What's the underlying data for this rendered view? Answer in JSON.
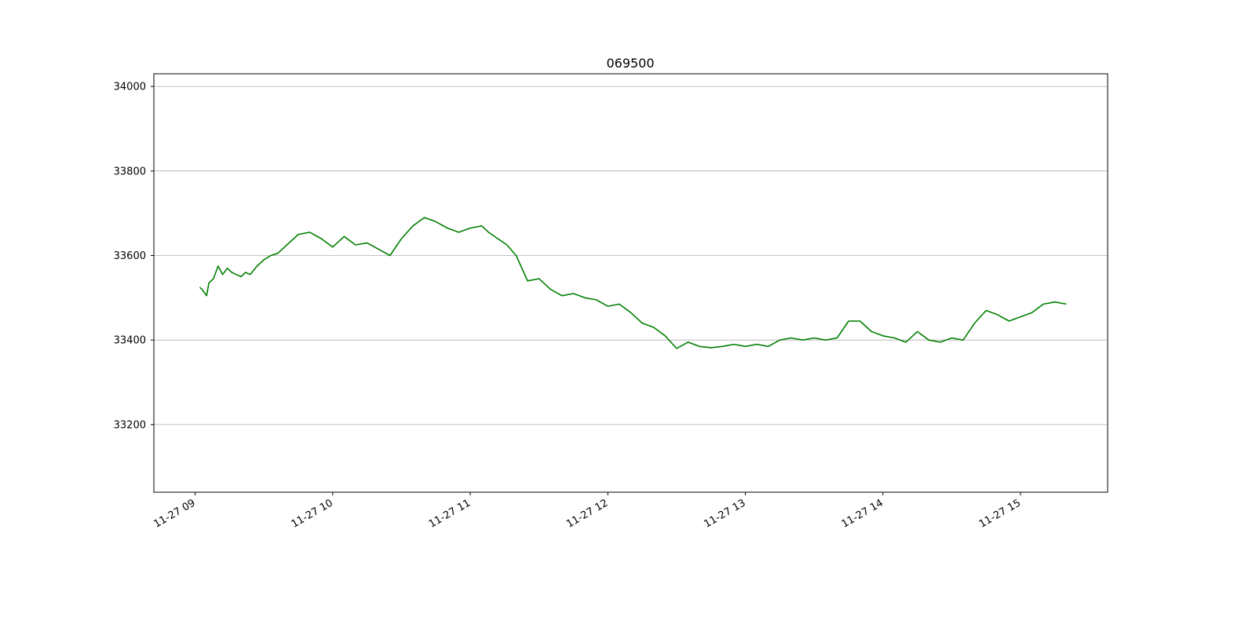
{
  "chart_data": {
    "type": "line",
    "title": "069500",
    "xlabel": "",
    "ylabel": "",
    "x_range": [
      "2023-11-27 08:42",
      "2023-11-27 15:38"
    ],
    "ylim": [
      33040,
      34030
    ],
    "x_ticks": [
      "11-27 09",
      "11-27 10",
      "11-27 11",
      "11-27 12",
      "11-27 13",
      "11-27 14",
      "11-27 15"
    ],
    "y_ticks": [
      33200,
      33400,
      33600,
      33800,
      34000
    ],
    "grid": "y-axis only",
    "colors": {
      "line": "#007f00",
      "grid": "#b0b0b0",
      "axes": "#000000"
    },
    "series": [
      {
        "x": [
          "2023-11-27 09:02",
          "2023-11-27 09:03",
          "2023-11-27 09:05",
          "2023-11-27 09:06",
          "2023-11-27 09:08",
          "2023-11-27 09:10",
          "2023-11-27 09:12",
          "2023-11-27 09:14",
          "2023-11-27 09:16",
          "2023-11-27 09:18",
          "2023-11-27 09:20",
          "2023-11-27 09:22",
          "2023-11-27 09:24",
          "2023-11-27 09:27",
          "2023-11-27 09:30",
          "2023-11-27 09:33",
          "2023-11-27 09:36",
          "2023-11-27 09:40",
          "2023-11-27 09:45",
          "2023-11-27 09:50",
          "2023-11-27 09:55",
          "2023-11-27 10:00",
          "2023-11-27 10:05",
          "2023-11-27 10:10",
          "2023-11-27 10:15",
          "2023-11-27 10:20",
          "2023-11-27 10:25",
          "2023-11-27 10:30",
          "2023-11-27 10:35",
          "2023-11-27 10:40",
          "2023-11-27 10:45",
          "2023-11-27 10:50",
          "2023-11-27 10:55",
          "2023-11-27 11:00",
          "2023-11-27 11:05",
          "2023-11-27 11:08",
          "2023-11-27 11:12",
          "2023-11-27 11:16",
          "2023-11-27 11:20",
          "2023-11-27 11:25",
          "2023-11-27 11:30",
          "2023-11-27 11:35",
          "2023-11-27 11:40",
          "2023-11-27 11:45",
          "2023-11-27 11:50",
          "2023-11-27 11:55",
          "2023-11-27 12:00",
          "2023-11-27 12:05",
          "2023-11-27 12:10",
          "2023-11-27 12:15",
          "2023-11-27 12:20",
          "2023-11-27 12:25",
          "2023-11-27 12:30",
          "2023-11-27 12:35",
          "2023-11-27 12:40",
          "2023-11-27 12:45",
          "2023-11-27 12:50",
          "2023-11-27 12:55",
          "2023-11-27 13:00",
          "2023-11-27 13:05",
          "2023-11-27 13:10",
          "2023-11-27 13:15",
          "2023-11-27 13:20",
          "2023-11-27 13:25",
          "2023-11-27 13:30",
          "2023-11-27 13:35",
          "2023-11-27 13:40",
          "2023-11-27 13:45",
          "2023-11-27 13:50",
          "2023-11-27 13:55",
          "2023-11-27 14:00",
          "2023-11-27 14:05",
          "2023-11-27 14:10",
          "2023-11-27 14:15",
          "2023-11-27 14:20",
          "2023-11-27 14:25",
          "2023-11-27 14:30",
          "2023-11-27 14:35",
          "2023-11-27 14:40",
          "2023-11-27 14:45",
          "2023-11-27 14:50",
          "2023-11-27 14:55",
          "2023-11-27 15:00",
          "2023-11-27 15:05",
          "2023-11-27 15:10",
          "2023-11-27 15:15",
          "2023-11-27 15:20"
        ],
        "y": [
          33525,
          33520,
          33505,
          33535,
          33545,
          33575,
          33555,
          33570,
          33560,
          33555,
          33550,
          33560,
          33555,
          33575,
          33590,
          33600,
          33605,
          33625,
          33650,
          33655,
          33640,
          33620,
          33645,
          33625,
          33630,
          33615,
          33600,
          33640,
          33670,
          33690,
          33680,
          33665,
          33655,
          33665,
          33670,
          33655,
          33640,
          33625,
          33600,
          33540,
          33545,
          33520,
          33505,
          33510,
          33500,
          33495,
          33480,
          33485,
          33465,
          33440,
          33430,
          33410,
          33380,
          33395,
          33385,
          33382,
          33385,
          33390,
          33385,
          33390,
          33385,
          33400,
          33405,
          33400,
          33405,
          33400,
          33405,
          33445,
          33445,
          33420,
          33410,
          33405,
          33395,
          33420,
          33400,
          33395,
          33405,
          33400,
          33440,
          33470,
          33460,
          33445,
          33455,
          33465,
          33485,
          33490,
          33485
        ]
      }
    ]
  }
}
